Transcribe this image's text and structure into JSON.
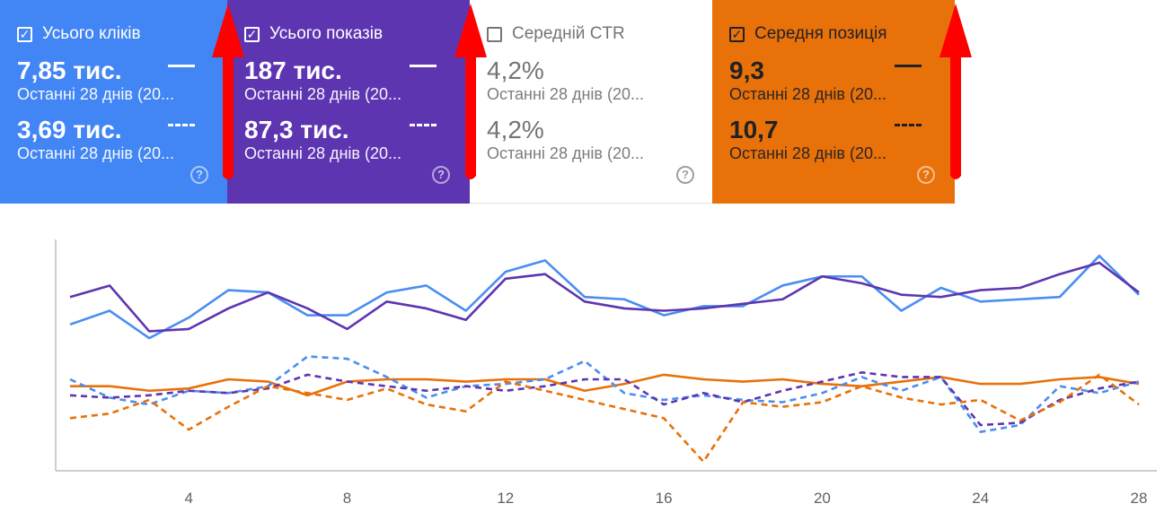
{
  "cards": [
    {
      "title": "Усього кліків",
      "checked": true,
      "bg": "#4285f4",
      "line": "#4a8ef0",
      "primary_value": "7,85 тис.",
      "primary_period": "Останні 28 днів (20...",
      "secondary_value": "3,69 тис.",
      "secondary_period": "Останні 28 днів (20...",
      "help": "?"
    },
    {
      "title": "Усього показів",
      "checked": true,
      "bg": "#5e35b1",
      "line": "#5e35b1",
      "primary_value": "187 тис.",
      "primary_period": "Останні 28 днів (20...",
      "secondary_value": "87,3 тис.",
      "secondary_period": "Останні 28 днів (20...",
      "help": "?"
    },
    {
      "title": "Середній CTR",
      "checked": false,
      "bg": "#ffffff",
      "line": "#757575",
      "primary_value": "4,2%",
      "primary_period": "Останні 28 днів (20...",
      "secondary_value": "4,2%",
      "secondary_period": "Останні 28 днів (20...",
      "help": "?"
    },
    {
      "title": "Середня позиція",
      "checked": true,
      "bg": "#e8710a",
      "line": "#e8710a",
      "primary_value": "9,3",
      "primary_period": "Останні 28 днів (20...",
      "secondary_value": "10,7",
      "secondary_period": "Останні 28 днів (20...",
      "help": "?"
    }
  ],
  "arrow_color": "#ff0000",
  "chart_data": {
    "type": "line",
    "x": [
      1,
      2,
      3,
      4,
      5,
      6,
      7,
      8,
      9,
      10,
      11,
      12,
      13,
      14,
      15,
      16,
      17,
      18,
      19,
      20,
      21,
      22,
      23,
      24,
      25,
      26,
      27,
      28
    ],
    "xticks": [
      "4",
      "8",
      "12",
      "16",
      "20",
      "24",
      "28"
    ],
    "xtick_values": [
      4,
      8,
      12,
      16,
      20,
      24,
      28
    ],
    "ylim": [
      0,
      100
    ],
    "grid": false,
    "series": [
      {
        "color": "#4a8ef0",
        "dash": false,
        "values": [
          64,
          70,
          58,
          67,
          79,
          78,
          68,
          68,
          78,
          81,
          70,
          87,
          92,
          76,
          75,
          68,
          72,
          72,
          81,
          85,
          85,
          70,
          80,
          74,
          75,
          76,
          94,
          77
        ]
      },
      {
        "color": "#5e35b1",
        "dash": false,
        "values": [
          76,
          81,
          61,
          62,
          71,
          78,
          71,
          62,
          74,
          71,
          66,
          84,
          86,
          74,
          71,
          70,
          71,
          73,
          75,
          85,
          82,
          77,
          76,
          79,
          80,
          86,
          91,
          78
        ]
      },
      {
        "color": "#e8710a",
        "dash": false,
        "values": [
          37,
          37,
          35,
          36,
          40,
          39,
          33,
          39,
          40,
          40,
          39,
          40,
          40,
          35,
          38,
          42,
          40,
          39,
          40,
          38,
          37,
          39,
          41,
          38,
          38,
          40,
          41,
          38
        ]
      },
      {
        "color": "#4a8ef0",
        "dash": true,
        "values": [
          40,
          32,
          29,
          35,
          34,
          37,
          50,
          49,
          41,
          32,
          37,
          38,
          40,
          48,
          34,
          31,
          33,
          31,
          30,
          34,
          41,
          35,
          41,
          17,
          20,
          37,
          34,
          39
        ]
      },
      {
        "color": "#5e35b1",
        "dash": true,
        "values": [
          33,
          32,
          33,
          35,
          34,
          36,
          42,
          39,
          37,
          35,
          37,
          35,
          37,
          40,
          40,
          29,
          34,
          30,
          35,
          39,
          43,
          41,
          41,
          20,
          21,
          31,
          36,
          39
        ]
      },
      {
        "color": "#e8710a",
        "dash": true,
        "values": [
          23,
          25,
          31,
          18,
          28,
          37,
          34,
          31,
          36,
          29,
          26,
          39,
          35,
          31,
          27,
          23,
          4,
          30,
          28,
          30,
          37,
          32,
          29,
          31,
          22,
          30,
          42,
          29
        ]
      }
    ]
  }
}
